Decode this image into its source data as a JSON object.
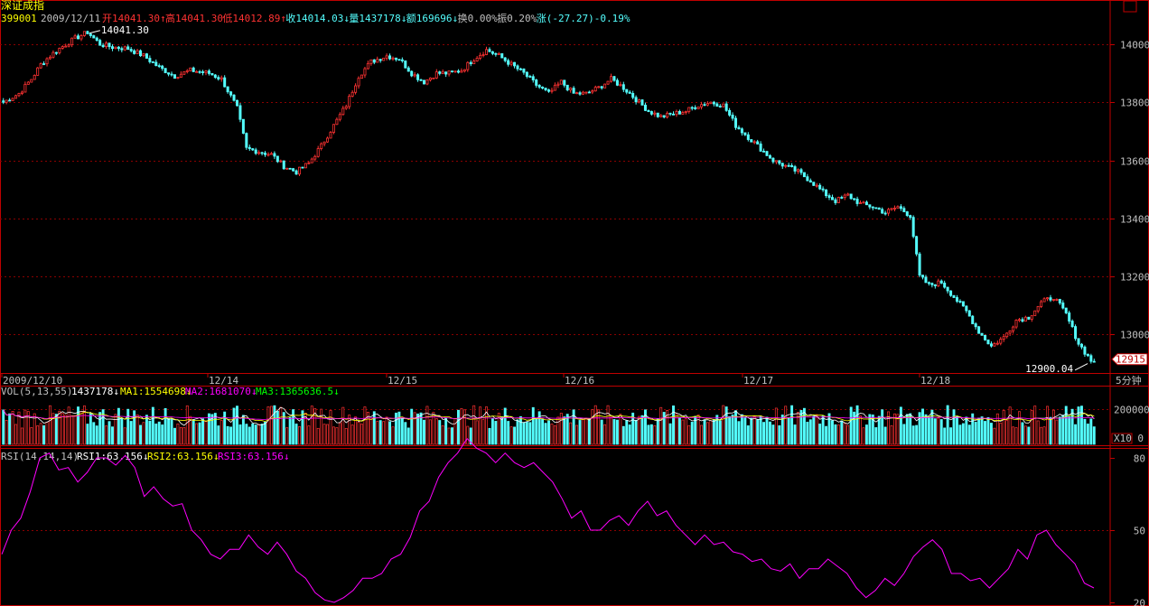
{
  "colors": {
    "up": "#ff3232",
    "down": "#54ffff",
    "grid": "#8a0000",
    "border": "#c00000",
    "text": "#c0c0c0",
    "yellow": "#ffff00",
    "magenta": "#ff00ff",
    "green": "#00ff00",
    "white": "#ffffff",
    "ma1": "#ffffff",
    "ma2": "#ffff00",
    "ma3": "#ff00ff"
  },
  "header": {
    "title": "深证成指",
    "code": "399001",
    "date": "2009/12/11",
    "fields": [
      {
        "text": "开14041.30",
        "arrow": "↑",
        "color": "up"
      },
      {
        "text": "高14041.30",
        "arrow": "",
        "color": "up"
      },
      {
        "text": "低14012.89",
        "arrow": "↑",
        "color": "up"
      },
      {
        "text": "收14014.03",
        "arrow": "↓",
        "color": "down"
      },
      {
        "text": "量1437178",
        "arrow": "↓",
        "color": "down"
      },
      {
        "text": "额169696",
        "arrow": "↓",
        "color": "down"
      },
      {
        "text": "换0.00%",
        "arrow": "",
        "color": "text"
      },
      {
        "text": "振0.20%",
        "arrow": "",
        "color": "text"
      },
      {
        "text": "涨(-27.27)-0.19%",
        "arrow": "",
        "color": "down"
      }
    ],
    "close_button": "▭"
  },
  "chart_data": {
    "type": "candlestick",
    "price_axis": {
      "ticks": [
        13000,
        13200,
        13400,
        13600,
        13800,
        14000
      ],
      "range": [
        12880,
        14090
      ]
    },
    "annotations": {
      "high": "14041.30",
      "low": "12900.04",
      "last_price": "12915"
    },
    "time_labels": [
      "2009/12/10",
      "12/14",
      "12/15",
      "12/16",
      "12/17",
      "12/18"
    ],
    "period": "5分钟",
    "anchors": [
      [
        0,
        13800
      ],
      [
        5,
        13830
      ],
      [
        9,
        13880
      ],
      [
        12,
        13930
      ],
      [
        15,
        13960
      ],
      [
        18,
        13985
      ],
      [
        23,
        14020
      ],
      [
        27,
        14041
      ],
      [
        31,
        14000
      ],
      [
        35,
        13990
      ],
      [
        40,
        13985
      ],
      [
        45,
        13960
      ],
      [
        50,
        13920
      ],
      [
        55,
        13890
      ],
      [
        60,
        13910
      ],
      [
        66,
        13900
      ],
      [
        70,
        13880
      ],
      [
        75,
        13780
      ],
      [
        78,
        13640
      ],
      [
        82,
        13630
      ],
      [
        86,
        13620
      ],
      [
        90,
        13580
      ],
      [
        94,
        13560
      ],
      [
        98,
        13590
      ],
      [
        102,
        13650
      ],
      [
        106,
        13720
      ],
      [
        110,
        13790
      ],
      [
        114,
        13890
      ],
      [
        118,
        13940
      ],
      [
        123,
        13960
      ],
      [
        127,
        13950
      ],
      [
        131,
        13900
      ],
      [
        135,
        13870
      ],
      [
        139,
        13900
      ],
      [
        143,
        13900
      ],
      [
        147,
        13910
      ],
      [
        151,
        13950
      ],
      [
        155,
        13980
      ],
      [
        159,
        13960
      ],
      [
        163,
        13930
      ],
      [
        167,
        13900
      ],
      [
        171,
        13860
      ],
      [
        175,
        13830
      ],
      [
        179,
        13870
      ],
      [
        183,
        13830
      ],
      [
        187,
        13830
      ],
      [
        191,
        13850
      ],
      [
        195,
        13880
      ],
      [
        199,
        13850
      ],
      [
        203,
        13810
      ],
      [
        207,
        13770
      ],
      [
        211,
        13750
      ],
      [
        215,
        13760
      ],
      [
        219,
        13770
      ],
      [
        223,
        13790
      ],
      [
        227,
        13800
      ],
      [
        231,
        13790
      ],
      [
        235,
        13720
      ],
      [
        239,
        13680
      ],
      [
        243,
        13640
      ],
      [
        247,
        13600
      ],
      [
        251,
        13580
      ],
      [
        255,
        13560
      ],
      [
        259,
        13530
      ],
      [
        263,
        13490
      ],
      [
        267,
        13460
      ],
      [
        271,
        13480
      ],
      [
        275,
        13450
      ],
      [
        279,
        13440
      ],
      [
        283,
        13420
      ],
      [
        287,
        13440
      ],
      [
        291,
        13410
      ],
      [
        294,
        13200
      ],
      [
        297,
        13170
      ],
      [
        301,
        13180
      ],
      [
        305,
        13130
      ],
      [
        309,
        13080
      ],
      [
        313,
        13010
      ],
      [
        317,
        12960
      ],
      [
        321,
        12990
      ],
      [
        325,
        13050
      ],
      [
        329,
        13060
      ],
      [
        333,
        13110
      ],
      [
        337,
        13130
      ],
      [
        341,
        13070
      ],
      [
        345,
        12970
      ],
      [
        349,
        12910
      ],
      [
        350,
        12910
      ]
    ],
    "drop_candles": 23,
    "gap_after": 291,
    "candles_count": 351,
    "volume": {
      "label": "VOL(5,13,55)",
      "value": "1437178",
      "ma1": "MA1:1554698",
      "ma2": "MA2:1681070",
      "ma3": "MA3:1365636.5",
      "axis_label": "200000",
      "unit": "X10",
      "range": [
        0,
        260000
      ]
    },
    "rsi": {
      "label": "RSI(14,14,14)",
      "rsi1": "RSI1:63.156",
      "rsi2": "RSI2:63.156",
      "rsi3": "RSI3:63.156",
      "ticks": [
        20,
        50,
        80
      ],
      "values": [
        40,
        50,
        55,
        66,
        80,
        82,
        75,
        76,
        70,
        74,
        80,
        80,
        77,
        81,
        76,
        64,
        68,
        63,
        60,
        61,
        50,
        46,
        40,
        38,
        42,
        42,
        48,
        43,
        40,
        45,
        40,
        33,
        30,
        24,
        21,
        20,
        22,
        25,
        30,
        30,
        32,
        38,
        40,
        47,
        58,
        62,
        72,
        78,
        82,
        88,
        84,
        82,
        78,
        82,
        78,
        76,
        78,
        74,
        70,
        63,
        55,
        58,
        50,
        50,
        54,
        56,
        52,
        58,
        62,
        56,
        58,
        52,
        48,
        44,
        48,
        44,
        45,
        41,
        40,
        37,
        38,
        34,
        33,
        36,
        30,
        34,
        34,
        38,
        35,
        32,
        26,
        22,
        25,
        30,
        27,
        32,
        39,
        43,
        46,
        42,
        32,
        32,
        29,
        30,
        26,
        30,
        34,
        42,
        38,
        48,
        50,
        44,
        40,
        36,
        28,
        26
      ]
    }
  }
}
